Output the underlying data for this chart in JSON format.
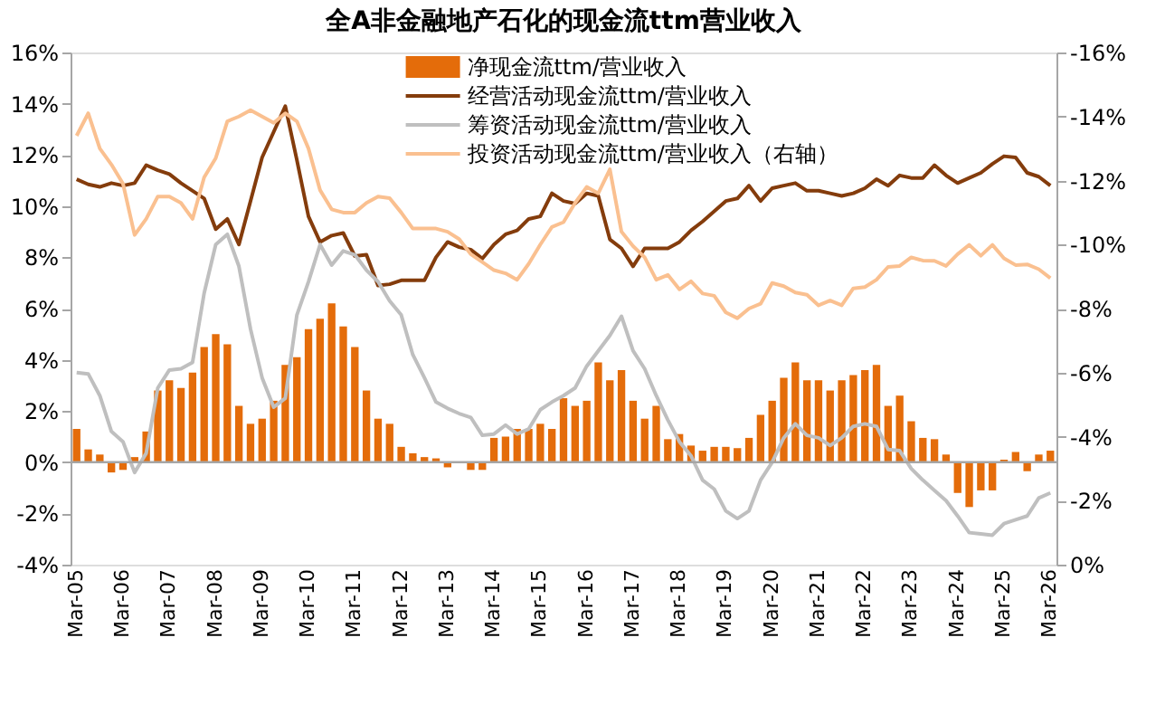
{
  "chart_data": {
    "type": "bar",
    "title": "全A非金融地产石化的现金流ttm营业收入",
    "categories": [
      "Mar-05",
      null,
      null,
      null,
      "Mar-06",
      null,
      null,
      null,
      "Mar-07",
      null,
      null,
      null,
      "Mar-08",
      null,
      null,
      null,
      "Mar-09",
      null,
      null,
      null,
      "Mar-10",
      null,
      null,
      null,
      "Mar-11",
      null,
      null,
      null,
      "Mar-12",
      null,
      null,
      null,
      "Mar-13",
      null,
      null,
      null,
      "Mar-14",
      null,
      null,
      null,
      "Mar-15",
      null,
      null,
      null,
      "Mar-16",
      null,
      null,
      null,
      "Mar-17",
      null,
      null,
      null,
      "Mar-18",
      null,
      null,
      null,
      "Mar-19",
      null,
      null,
      null,
      "Mar-20",
      null,
      null,
      null,
      "Mar-21",
      null,
      null,
      null,
      "Mar-22",
      null,
      null,
      null,
      "Mar-23",
      null,
      null,
      null,
      "Mar-24",
      null,
      null,
      null,
      "Mar-25",
      null,
      null,
      null,
      "Mar-26"
    ],
    "series": [
      {
        "name": "净现金流ttm/营业收入",
        "color": "#e46c0a",
        "values": [
          1.3,
          0.5,
          0.3,
          -0.4,
          -0.3,
          0.2,
          1.2,
          2.8,
          3.2,
          2.9,
          3.5,
          4.5,
          5.0,
          4.6,
          2.2,
          1.5,
          1.7,
          2.4,
          3.8,
          4.1,
          5.2,
          5.6,
          6.2,
          5.3,
          4.5,
          2.8,
          1.7,
          1.5,
          0.6,
          0.35,
          0.2,
          0.15,
          -0.2,
          null,
          -0.3,
          -0.3,
          0.95,
          1.0,
          1.3,
          1.3,
          1.5,
          1.3,
          2.5,
          2.2,
          2.4,
          3.9,
          3.2,
          3.6,
          2.4,
          1.7,
          2.2,
          0.9,
          1.1,
          0.65,
          0.45,
          0.6,
          0.6,
          0.55,
          0.95,
          1.85,
          2.4,
          3.3,
          3.9,
          3.2,
          3.2,
          2.8,
          3.2,
          3.4,
          3.6,
          3.8,
          2.2,
          2.6,
          1.6,
          0.95,
          0.9,
          0.3,
          -1.2,
          -1.75,
          -1.1,
          -1.1,
          0.1,
          0.4,
          -0.35,
          0.3,
          0.45
        ]
      },
      {
        "name": "经营活动现金流ttm/营业收入",
        "type": "line",
        "color": "#843c0c",
        "values": [
          11.05,
          10.85,
          10.75,
          10.9,
          10.8,
          10.9,
          11.6,
          11.4,
          11.25,
          10.9,
          10.6,
          10.3,
          9.1,
          9.5,
          8.5,
          10.2,
          11.9,
          12.9,
          13.9,
          11.8,
          9.6,
          8.6,
          8.85,
          8.95,
          8.05,
          8.1,
          6.9,
          6.95,
          7.1,
          7.1,
          7.1,
          8.0,
          8.6,
          8.4,
          8.3,
          7.95,
          8.5,
          8.9,
          9.05,
          9.5,
          9.6,
          10.5,
          10.2,
          10.1,
          10.5,
          10.4,
          8.7,
          8.35,
          7.65,
          8.35,
          8.35,
          8.35,
          8.6,
          9.05,
          9.4,
          9.8,
          10.2,
          10.3,
          10.8,
          10.2,
          10.7,
          10.8,
          10.9,
          10.6,
          10.6,
          10.5,
          10.4,
          10.5,
          10.7,
          11.05,
          10.8,
          11.2,
          11.1,
          11.1,
          11.6,
          11.2,
          10.9,
          11.1,
          11.3,
          11.65,
          11.95,
          11.9,
          11.3,
          11.15,
          10.8
        ]
      },
      {
        "name": "筹资活动现金流ttm/营业收入",
        "type": "line",
        "color": "#bfbfbf",
        "values": [
          3.5,
          3.45,
          2.6,
          1.2,
          0.8,
          -0.4,
          0.35,
          2.9,
          3.6,
          3.65,
          3.9,
          6.6,
          8.5,
          8.9,
          7.65,
          5.2,
          3.3,
          2.15,
          2.5,
          5.75,
          7.05,
          8.5,
          7.7,
          8.25,
          8.1,
          7.5,
          7.05,
          6.3,
          5.75,
          4.2,
          3.3,
          2.35,
          2.1,
          1.9,
          1.75,
          1.05,
          1.1,
          1.45,
          1.1,
          1.3,
          2.05,
          2.35,
          2.6,
          2.9,
          3.75,
          4.35,
          4.95,
          5.7,
          4.35,
          3.65,
          2.6,
          1.65,
          0.8,
          0.25,
          -0.7,
          -1.05,
          -1.9,
          -2.2,
          -1.9,
          -0.7,
          0.0,
          0.95,
          1.5,
          1.05,
          0.95,
          0.65,
          0.95,
          1.4,
          1.5,
          1.4,
          0.5,
          0.45,
          -0.25,
          -0.7,
          -1.1,
          -1.5,
          -2.1,
          -2.75,
          -2.8,
          -2.85,
          -2.4,
          -2.25,
          -2.1,
          -1.4,
          -1.2
        ]
      },
      {
        "name": "投资活动现金流ttm/营业收入（右轴）",
        "type": "line",
        "axis": "y2",
        "color": "#fac090",
        "values": [
          -13.4,
          -14.1,
          -13.0,
          -12.5,
          -11.9,
          -10.3,
          -10.8,
          -11.5,
          -11.5,
          -11.3,
          -10.8,
          -12.1,
          -12.7,
          -13.85,
          -14.0,
          -14.2,
          -14.0,
          -13.8,
          -14.1,
          -13.85,
          -13.0,
          -11.7,
          -11.1,
          -11.0,
          -11.0,
          -11.3,
          -11.5,
          -11.45,
          -11.0,
          -10.5,
          -10.5,
          -10.5,
          -10.4,
          -10.17,
          -9.7,
          -9.45,
          -9.2,
          -9.1,
          -8.9,
          -9.4,
          -10.0,
          -10.55,
          -10.7,
          -11.3,
          -11.8,
          -11.6,
          -12.35,
          -10.4,
          -9.95,
          -9.6,
          -8.9,
          -9.05,
          -8.6,
          -8.85,
          -8.47,
          -8.4,
          -7.88,
          -7.7,
          -8.0,
          -8.15,
          -8.8,
          -8.7,
          -8.5,
          -8.43,
          -8.1,
          -8.25,
          -8.1,
          -8.63,
          -8.67,
          -8.9,
          -9.3,
          -9.33,
          -9.6,
          -9.5,
          -9.49,
          -9.33,
          -9.7,
          -9.99,
          -9.65,
          -9.99,
          -9.57,
          -9.36,
          -9.38,
          -9.23,
          -8.95
        ]
      }
    ],
    "ylim": [
      -4,
      16
    ],
    "yticks": [
      {
        "value": -4,
        "label": "-4%"
      },
      {
        "value": -2,
        "label": "-2%"
      },
      {
        "value": 0,
        "label": "0%"
      },
      {
        "value": 2,
        "label": "2%"
      },
      {
        "value": 4,
        "label": "4%"
      },
      {
        "value": 6,
        "label": "6%"
      },
      {
        "value": 8,
        "label": "8%"
      },
      {
        "value": 10,
        "label": "10%"
      },
      {
        "value": 12,
        "label": "12%"
      },
      {
        "value": 14,
        "label": "14%"
      },
      {
        "value": 16,
        "label": "16%"
      }
    ],
    "y2lim": [
      0,
      -16
    ],
    "y2ticks": [
      {
        "value": 0,
        "label": "0%"
      },
      {
        "value": -2,
        "label": "-2%"
      },
      {
        "value": -4,
        "label": "-4%"
      },
      {
        "value": -6,
        "label": "-6%"
      },
      {
        "value": -8,
        "label": "-8%"
      },
      {
        "value": -10,
        "label": "-10%"
      },
      {
        "value": -12,
        "label": "-12%"
      },
      {
        "value": -14,
        "label": "-14%"
      },
      {
        "value": -16,
        "label": "-16%"
      }
    ],
    "ref_lines": [
      {
        "axis": "y",
        "value": 0,
        "color": "#a6a6a6"
      }
    ],
    "legend": "top"
  }
}
